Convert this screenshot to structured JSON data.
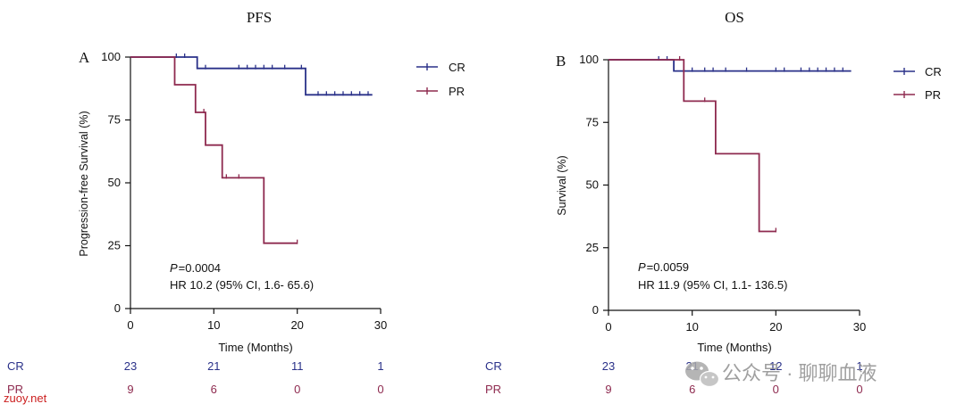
{
  "colors": {
    "cr": "#2a3189",
    "pr": "#8e2a4f",
    "axis": "#111111",
    "watermark_red": "#cc1f1f",
    "watermark_gray": "#9a9a9a"
  },
  "chart_data": [
    {
      "type": "line",
      "panel_letter": "A",
      "title": "PFS",
      "xlabel": "Time (Months)",
      "ylabel": "Progression-free Survival (%)",
      "xlim": [
        0,
        30
      ],
      "ylim": [
        0,
        100
      ],
      "xticks": [
        "0",
        "10",
        "20",
        "30"
      ],
      "yticks": [
        "0",
        "25",
        "50",
        "75",
        "100"
      ],
      "legend_position": "top-right",
      "annotation": {
        "p_label": "P",
        "p_value": "=0.0004",
        "hr": "HR 10.2 (95% CI, 1.6- 65.6)"
      },
      "series": [
        {
          "name": "CR",
          "steps": [
            [
              0,
              100
            ],
            [
              8,
              100
            ],
            [
              8,
              95.5
            ],
            [
              21,
              95.5
            ],
            [
              21,
              85
            ],
            [
              29,
              85
            ]
          ],
          "censors": [
            [
              5.5,
              100
            ],
            [
              6.5,
              100
            ],
            [
              9,
              95.5
            ],
            [
              13,
              95.5
            ],
            [
              14,
              95.5
            ],
            [
              15,
              95.5
            ],
            [
              16,
              95.5
            ],
            [
              17,
              95.5
            ],
            [
              18.5,
              95.5
            ],
            [
              20.5,
              95.5
            ],
            [
              22.5,
              85
            ],
            [
              23.5,
              85
            ],
            [
              24.5,
              85
            ],
            [
              25.5,
              85
            ],
            [
              26.5,
              85
            ],
            [
              27.5,
              85
            ],
            [
              28.5,
              85
            ]
          ]
        },
        {
          "name": "PR",
          "steps": [
            [
              0,
              100
            ],
            [
              5.3,
              100
            ],
            [
              5.3,
              89
            ],
            [
              7.8,
              89
            ],
            [
              7.8,
              78
            ],
            [
              9,
              78
            ],
            [
              9,
              65
            ],
            [
              11,
              65
            ],
            [
              11,
              52
            ],
            [
              16,
              52
            ],
            [
              16,
              26
            ],
            [
              20,
              26
            ]
          ],
          "censors": [
            [
              8.8,
              78
            ],
            [
              11.5,
              52
            ],
            [
              13,
              52
            ],
            [
              20,
              26
            ]
          ]
        }
      ],
      "risk_table": {
        "rows": [
          {
            "label": "CR",
            "values": [
              "23",
              "21",
              "11",
              "1"
            ]
          },
          {
            "label": "PR",
            "values": [
              "9",
              "6",
              "0",
              "0"
            ]
          }
        ]
      }
    },
    {
      "type": "line",
      "panel_letter": "B",
      "title": "OS",
      "xlabel": "Time (Months)",
      "ylabel": "Survival (%)",
      "xlim": [
        0,
        30
      ],
      "ylim": [
        0,
        100
      ],
      "xticks": [
        "0",
        "10",
        "20",
        "30"
      ],
      "yticks": [
        "0",
        "25",
        "50",
        "75",
        "100"
      ],
      "legend_position": "top-right",
      "annotation": {
        "p_label": "P",
        "p_value": "=0.0059",
        "hr": "HR 11.9 (95% CI, 1.1- 136.5)"
      },
      "series": [
        {
          "name": "CR",
          "steps": [
            [
              0,
              100
            ],
            [
              7.8,
              100
            ],
            [
              7.8,
              95.5
            ],
            [
              29,
              95.5
            ]
          ],
          "censors": [
            [
              6,
              100
            ],
            [
              7,
              100
            ],
            [
              10,
              95.5
            ],
            [
              11.5,
              95.5
            ],
            [
              12.5,
              95.5
            ],
            [
              14,
              95.5
            ],
            [
              16.5,
              95.5
            ],
            [
              20,
              95.5
            ],
            [
              21,
              95.5
            ],
            [
              23,
              95.5
            ],
            [
              24,
              95.5
            ],
            [
              25,
              95.5
            ],
            [
              26,
              95.5
            ],
            [
              27,
              95.5
            ],
            [
              28,
              95.5
            ]
          ]
        },
        {
          "name": "PR",
          "steps": [
            [
              0,
              100
            ],
            [
              9,
              100
            ],
            [
              9,
              83.5
            ],
            [
              12.8,
              83.5
            ],
            [
              12.8,
              62.5
            ],
            [
              18,
              62.5
            ],
            [
              18,
              31.5
            ],
            [
              20,
              31.5
            ]
          ],
          "censors": [
            [
              8.5,
              100
            ],
            [
              11.5,
              83.5
            ],
            [
              20,
              31.5
            ]
          ]
        }
      ],
      "risk_table": {
        "rows": [
          {
            "label": "CR",
            "values": [
              "23",
              "21",
              "12",
              "1"
            ]
          },
          {
            "label": "PR",
            "values": [
              "9",
              "6",
              "0",
              "0"
            ]
          }
        ]
      }
    }
  ],
  "watermark": {
    "channel": "公众号 · 聊聊血液",
    "site": "zuoy.net"
  }
}
